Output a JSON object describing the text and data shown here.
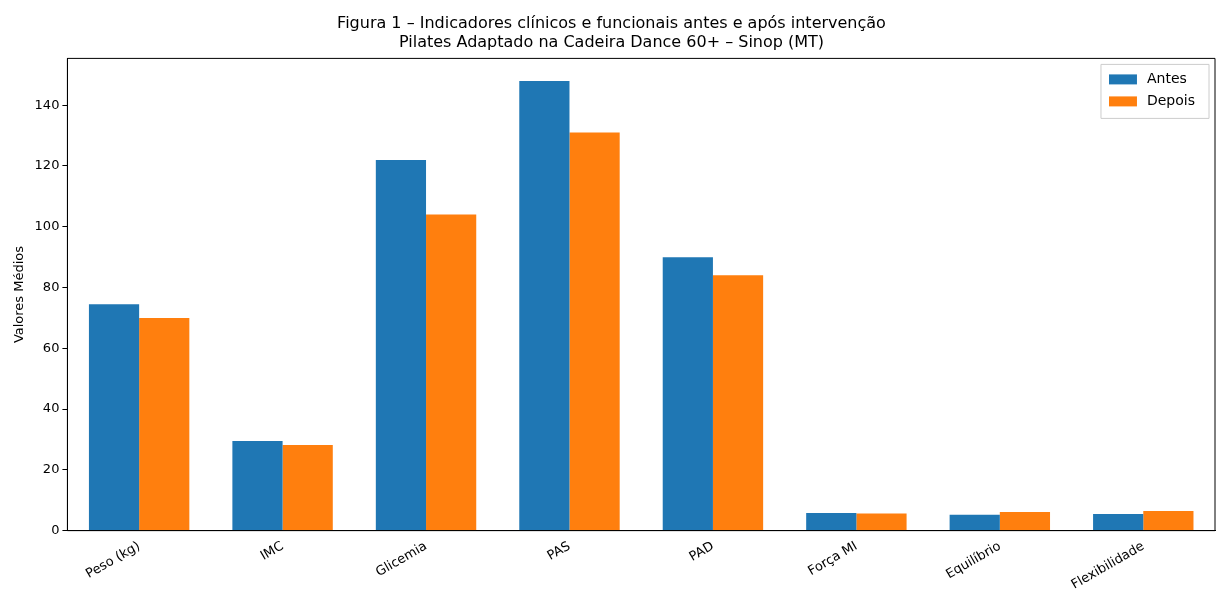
{
  "chart_data": {
    "type": "bar",
    "title": "Figura 1 – Indicadores clínicos e funcionais antes e após intervenção",
    "subtitle": "Pilates Adaptado na Cadeira Dance 60+ – Sinop (MT)",
    "ylabel": "Valores Médios",
    "categories": [
      "Peso (kg)",
      "IMC",
      "Glicemia",
      "PAS",
      "PAD",
      "Força MI",
      "Equilíbrio",
      "Flexibilidade"
    ],
    "series": [
      {
        "name": "Antes",
        "color": "#1f77b4",
        "values": [
          74.5,
          29.5,
          122,
          148,
          90,
          5.8,
          5.2,
          5.5
        ]
      },
      {
        "name": "Depois",
        "color": "#ff7f0e",
        "values": [
          70,
          28.2,
          104,
          131,
          84,
          5.6,
          6.1,
          6.5
        ]
      }
    ],
    "ylim": [
      0,
      155.4
    ],
    "yticks": [
      0,
      20,
      40,
      60,
      80,
      100,
      120,
      140
    ],
    "grid": false,
    "legend": "top right"
  }
}
